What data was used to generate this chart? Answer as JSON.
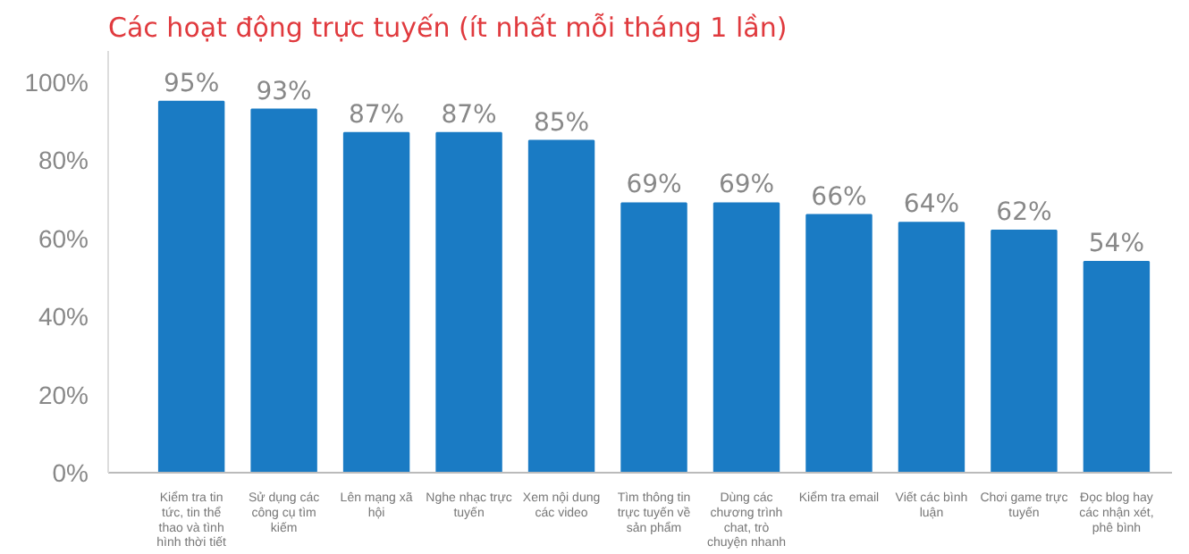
{
  "chart_data": {
    "type": "bar",
    "title": "Các hoạt động trực tuyến (ít nhất mỗi tháng 1 lần)",
    "categories": [
      "Kiểm tra tin tức, tin thể thao và tình hình thời tiết",
      "Sử dụng các công cụ tìm kiếm",
      "Lên mạng xã hội",
      "Nghe nhạc trực tuyến",
      "Xem nội dung các video",
      "Tìm thông tin trực tuyến về sản phẩm",
      "Dùng các chương trình chat, trò chuyện nhanh",
      "Kiểm tra email",
      "Viết các bình luận",
      "Chơi game trực tuyến",
      "Đọc blog hay các nhận xét, phê bình"
    ],
    "values": [
      95,
      93,
      87,
      87,
      85,
      69,
      69,
      66,
      64,
      62,
      54
    ],
    "value_labels": [
      "95%",
      "93%",
      "87%",
      "87%",
      "85%",
      "69%",
      "69%",
      "66%",
      "64%",
      "62%",
      "54%"
    ],
    "color": "#1a7bc4",
    "ylim": [
      0,
      108
    ],
    "yticks": [
      {
        "value": 0,
        "label": "0%"
      },
      {
        "value": 20,
        "label": "20%"
      },
      {
        "value": 40,
        "label": "40%"
      },
      {
        "value": 60,
        "label": "60%"
      },
      {
        "value": 80,
        "label": "80%"
      },
      {
        "value": 100,
        "label": "100%"
      }
    ],
    "grid": false
  }
}
